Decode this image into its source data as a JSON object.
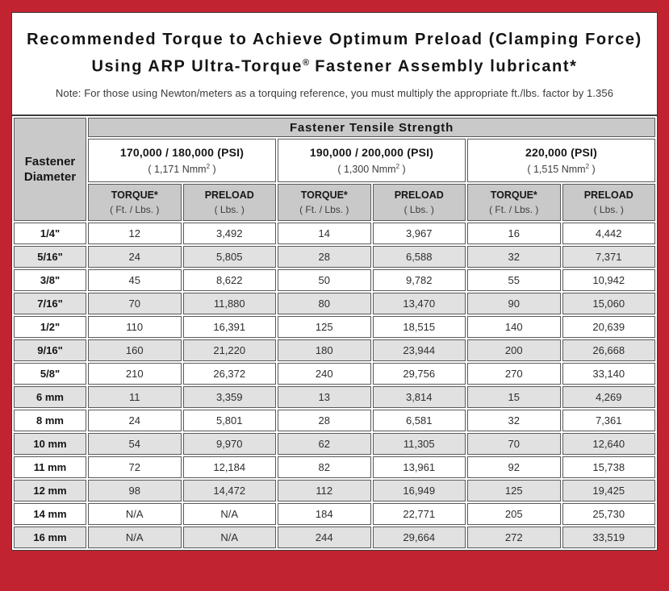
{
  "colors": {
    "frame_red": "#c22330",
    "header_gray": "#c9c9c9",
    "shaded_row_gray": "#e1e1e1",
    "cell_border": "#59595c"
  },
  "title": {
    "line1": "Recommended Torque to Achieve Optimum Preload (Clamping Force)",
    "line2_pre": "Using ARP Ultra-Torque",
    "line2_sup": "®",
    "line2_post": " Fastener Assembly lubricant*"
  },
  "note": "Note: For those using Newton/meters as a torquing reference, you must multiply the appropriate ft./lbs. factor by 1.356",
  "table": {
    "tensile_header": "Fastener Tensile Strength",
    "diameter_header_line1": "Fastener",
    "diameter_header_line2": "Diameter",
    "groups": [
      {
        "psi": "170,000 / 180,000 (PSI)",
        "nmm_pre": "( 1,171 Nmm",
        "nmm_sup": "2",
        "nmm_post": " )"
      },
      {
        "psi": "190,000 / 200,000 (PSI)",
        "nmm_pre": "( 1,300 Nmm",
        "nmm_sup": "2",
        "nmm_post": " )"
      },
      {
        "psi": "220,000 (PSI)",
        "nmm_pre": "( 1,515 Nmm",
        "nmm_sup": "2",
        "nmm_post": " )"
      }
    ],
    "torque_label": "TORQUE*",
    "torque_unit": "( Ft. / Lbs. )",
    "preload_label": "PRELOAD",
    "preload_unit": "( Lbs. )",
    "rows": [
      {
        "diameter": "1/4\"",
        "values": [
          "12",
          "3,492",
          "14",
          "3,967",
          "16",
          "4,442"
        ]
      },
      {
        "diameter": "5/16\"",
        "values": [
          "24",
          "5,805",
          "28",
          "6,588",
          "32",
          "7,371"
        ]
      },
      {
        "diameter": "3/8\"",
        "values": [
          "45",
          "8,622",
          "50",
          "9,782",
          "55",
          "10,942"
        ]
      },
      {
        "diameter": "7/16\"",
        "values": [
          "70",
          "11,880",
          "80",
          "13,470",
          "90",
          "15,060"
        ]
      },
      {
        "diameter": "1/2\"",
        "values": [
          "110",
          "16,391",
          "125",
          "18,515",
          "140",
          "20,639"
        ]
      },
      {
        "diameter": "9/16\"",
        "values": [
          "160",
          "21,220",
          "180",
          "23,944",
          "200",
          "26,668"
        ]
      },
      {
        "diameter": "5/8\"",
        "values": [
          "210",
          "26,372",
          "240",
          "29,756",
          "270",
          "33,140"
        ]
      },
      {
        "diameter": "6 mm",
        "values": [
          "11",
          "3,359",
          "13",
          "3,814",
          "15",
          "4,269"
        ]
      },
      {
        "diameter": "8 mm",
        "values": [
          "24",
          "5,801",
          "28",
          "6,581",
          "32",
          "7,361"
        ]
      },
      {
        "diameter": "10 mm",
        "values": [
          "54",
          "9,970",
          "62",
          "11,305",
          "70",
          "12,640"
        ]
      },
      {
        "diameter": "11 mm",
        "values": [
          "72",
          "12,184",
          "82",
          "13,961",
          "92",
          "15,738"
        ]
      },
      {
        "diameter": "12 mm",
        "values": [
          "98",
          "14,472",
          "112",
          "16,949",
          "125",
          "19,425"
        ]
      },
      {
        "diameter": "14 mm",
        "values": [
          "N/A",
          "N/A",
          "184",
          "22,771",
          "205",
          "25,730"
        ]
      },
      {
        "diameter": "16 mm",
        "values": [
          "N/A",
          "N/A",
          "244",
          "29,664",
          "272",
          "33,519"
        ]
      }
    ]
  }
}
